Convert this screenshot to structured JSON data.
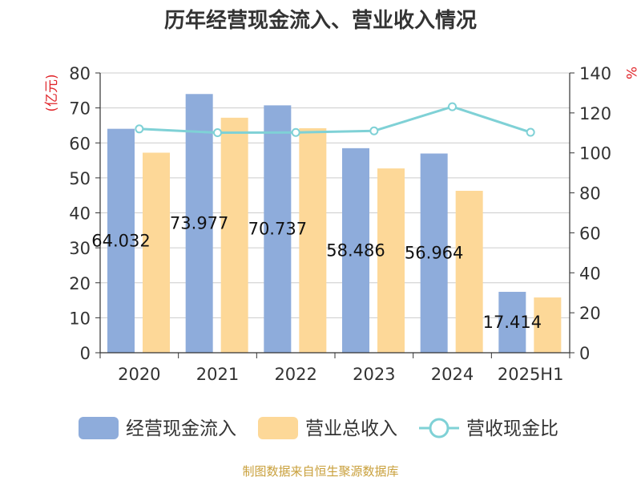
{
  "chart_data": {
    "type": "bar",
    "title": "历年经营现金流入、营业收入情况",
    "categories": [
      "2020",
      "2021",
      "2022",
      "2023",
      "2024",
      "2025H1"
    ],
    "y_left": {
      "unit": "(亿元)",
      "ylim": [
        0,
        80
      ],
      "ticks": [
        "0",
        "10",
        "20",
        "30",
        "40",
        "50",
        "60",
        "70",
        "80"
      ]
    },
    "y_right": {
      "unit": "%",
      "ylim": [
        0,
        140
      ],
      "ticks": [
        "0",
        "20",
        "40",
        "60",
        "80",
        "100",
        "120",
        "140"
      ]
    },
    "series": [
      {
        "name": "经营现金流入",
        "type": "bar",
        "axis": "left",
        "color": "#8eacdb",
        "values": [
          64.032,
          73.977,
          70.737,
          58.486,
          56.964,
          17.414
        ],
        "labels": [
          "64.032",
          "73.977",
          "70.737",
          "58.486",
          "56.964",
          "17.414"
        ]
      },
      {
        "name": "营业总收入",
        "type": "bar",
        "axis": "left",
        "color": "#fdd898",
        "values": [
          57.2,
          67.2,
          64.2,
          52.7,
          46.3,
          15.8
        ]
      },
      {
        "name": "营收现金比",
        "type": "line",
        "axis": "right",
        "color": "#7fd1d6",
        "values": [
          112,
          110.1,
          110.2,
          111,
          123.1,
          110.3
        ]
      }
    ],
    "grid": true,
    "legend": "bottom",
    "source": "制图数据来自恒生聚源数据库"
  }
}
